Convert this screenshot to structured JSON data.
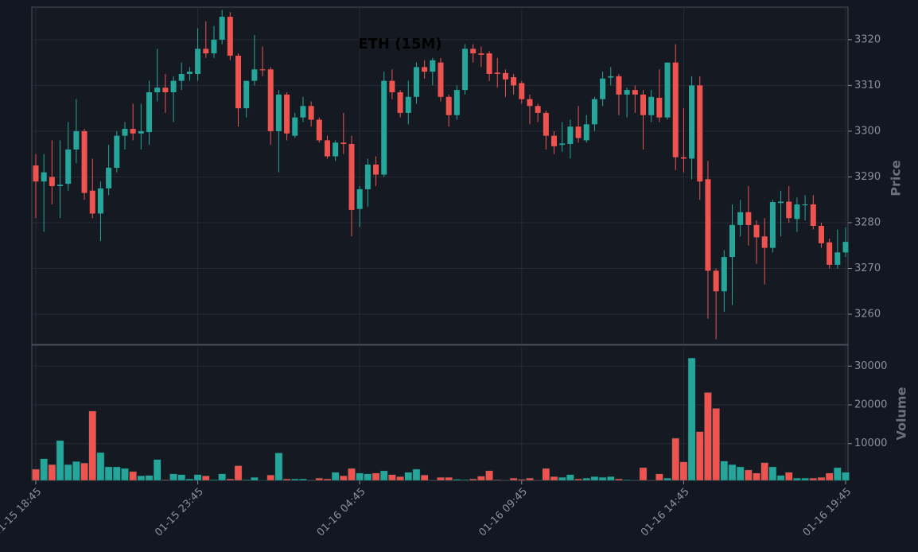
{
  "chart_data": {
    "type": "candlestick",
    "title": "ETH (15M)",
    "ylabel": "Price",
    "up_color": "#26a69a",
    "down_color": "#ef5350",
    "grid": true,
    "categories": [
      "01-15 18:45",
      null,
      null,
      null,
      null,
      null,
      null,
      null,
      null,
      null,
      null,
      null,
      null,
      null,
      null,
      null,
      null,
      null,
      null,
      null,
      "01-15 23:45",
      null,
      null,
      null,
      null,
      null,
      null,
      null,
      null,
      null,
      null,
      null,
      null,
      null,
      null,
      null,
      null,
      null,
      null,
      null,
      "01-16 04:45",
      null,
      null,
      null,
      null,
      null,
      null,
      null,
      null,
      null,
      null,
      null,
      null,
      null,
      null,
      null,
      null,
      null,
      null,
      null,
      "01-16 09:45",
      null,
      null,
      null,
      null,
      null,
      null,
      null,
      null,
      null,
      null,
      null,
      null,
      null,
      null,
      null,
      null,
      null,
      null,
      null,
      "01-16 14:45",
      null,
      null,
      null,
      null,
      null,
      null,
      null,
      null,
      null,
      null,
      null,
      null,
      null,
      null,
      null,
      null,
      null,
      null,
      null,
      "01-16 19:45"
    ],
    "open": [
      3292.5,
      3289,
      3290,
      3288,
      3288.5,
      3296,
      3300,
      3287,
      3282,
      3287.5,
      3292,
      3299,
      3300.5,
      3299.5,
      3299.8,
      3308.5,
      3309.5,
      3308.5,
      3311,
      3312.5,
      3312.5,
      3318,
      3317,
      3320,
      3325,
      3316.5,
      3305,
      3311,
      3313.5,
      3313.5,
      3300,
      3308,
      3299,
      3303,
      3305.5,
      3302.5,
      3298,
      3294.5,
      3297.5,
      3297.2,
      3283,
      3287.3,
      3292.7,
      3290.5,
      3311,
      3308.5,
      3304,
      3307.5,
      3314,
      3313,
      3315,
      3307.5,
      3303.5,
      3309,
      3318,
      3317,
      3317,
      3312.8,
      3312.7,
      3311.8,
      3310.5,
      3307,
      3305.5,
      3304,
      3299,
      3297,
      3297.2,
      3301,
      3298,
      3301.5,
      3307,
      3311.7,
      3312,
      3308,
      3309,
      3308,
      3303.5,
      3307.3,
      3303,
      3315,
      3294.3,
      3294,
      3310,
      3289.5,
      3269.5,
      3265,
      3272.5,
      3279.5,
      3282.3,
      3279.5,
      3277,
      3274.5,
      3284.3,
      3284.6,
      3280.8,
      3283.8,
      3284,
      3279.3,
      3275.7,
      3270.8,
      3273.5
    ],
    "high": [
      3295,
      3295,
      3298,
      3298,
      3302,
      3307,
      3300.5,
      3294,
      3289,
      3297,
      3300,
      3302,
      3306,
      3306,
      3311,
      3318,
      3312.5,
      3312,
      3315,
      3314,
      3322.5,
      3324,
      3323,
      3326.5,
      3326,
      3317,
      3311,
      3321,
      3318.5,
      3314,
      3309,
      3308.5,
      3304,
      3307.5,
      3306.5,
      3303,
      3299,
      3298,
      3304,
      3299,
      3288,
      3294,
      3294.5,
      3313,
      3313.5,
      3309,
      3311,
      3315,
      3315.5,
      3316,
      3316,
      3308,
      3310,
      3319,
      3319,
      3318.5,
      3317.5,
      3316,
      3313.5,
      3312.5,
      3311,
      3308,
      3306,
      3304.5,
      3300,
      3302,
      3302.5,
      3305.5,
      3303.5,
      3307.5,
      3313,
      3314,
      3312.5,
      3309.5,
      3310,
      3309,
      3309,
      3313.5,
      3315,
      3319,
      3305,
      3312,
      3312,
      3293.5,
      3270,
      3274,
      3284,
      3285,
      3288,
      3280.5,
      3281,
      3285,
      3287,
      3288,
      3285.5,
      3286,
      3286,
      3280,
      3276.5,
      3278.5,
      3279
    ],
    "low": [
      3281,
      3278,
      3284,
      3281,
      3287,
      3293,
      3285,
      3281,
      3276,
      3286,
      3291,
      3296,
      3298,
      3296,
      3297,
      3306.5,
      3304,
      3302,
      3309,
      3311,
      3311,
      3316,
      3316,
      3319,
      3315.5,
      3301,
      3303,
      3310,
      3312,
      3297,
      3291,
      3298,
      3298.5,
      3302,
      3301,
      3297.5,
      3294,
      3293.5,
      3295,
      3277,
      3279,
      3283.5,
      3288,
      3290,
      3307,
      3303,
      3301.5,
      3306,
      3311.5,
      3310,
      3306.5,
      3301,
      3302.5,
      3308,
      3315,
      3314,
      3311,
      3309.5,
      3307.5,
      3308,
      3306,
      3301.5,
      3302,
      3296,
      3295,
      3295.5,
      3294,
      3297.5,
      3297.5,
      3300,
      3305.5,
      3310,
      3303.5,
      3303,
      3304,
      3296,
      3302,
      3302,
      3302.5,
      3291.5,
      3291,
      3289.5,
      3285,
      3259,
      3254.5,
      3260.5,
      3262,
      3277,
      3275,
      3271,
      3266.5,
      3273.5,
      3277,
      3280,
      3278,
      3280.5,
      3278.5,
      3274.5,
      3270,
      3270,
      3272.5
    ],
    "close": [
      3289,
      3291,
      3288,
      3288.3,
      3296,
      3300,
      3286.5,
      3282,
      3287.5,
      3292,
      3299,
      3300.5,
      3299.5,
      3300,
      3308.5,
      3309.5,
      3308.5,
      3311,
      3312.5,
      3313,
      3318,
      3317,
      3320,
      3325,
      3316.5,
      3305,
      3311,
      3313.5,
      3313.3,
      3300,
      3308,
      3299.5,
      3303,
      3305.5,
      3302.5,
      3298,
      3294.5,
      3297.5,
      3297.2,
      3282.8,
      3287.3,
      3292.7,
      3290.5,
      3311,
      3308.5,
      3304,
      3307.5,
      3314,
      3313,
      3315.5,
      3307.5,
      3303.5,
      3309,
      3318,
      3317,
      3316.7,
      3312.5,
      3312.5,
      3311.3,
      3310,
      3307,
      3305.5,
      3304,
      3299,
      3296.7,
      3297.3,
      3301,
      3298.5,
      3301.5,
      3307,
      3311.5,
      3312,
      3308,
      3309,
      3308,
      3303.5,
      3307.5,
      3303,
      3315,
      3294.3,
      3294,
      3310,
      3289,
      3269.5,
      3265,
      3272.5,
      3279.5,
      3282.3,
      3279.5,
      3276.8,
      3274.5,
      3284.5,
      3284.6,
      3281,
      3284,
      3284,
      3279.3,
      3275.5,
      3270.8,
      3273.5,
      3275.8
    ],
    "ylim": [
      3253.4,
      3327.1
    ],
    "yticks": [
      3260,
      3270,
      3280,
      3290,
      3300,
      3310,
      3320
    ],
    "volume": {
      "ylabel": "Volume",
      "values": [
        3400,
        6100,
        4600,
        10800,
        4600,
        5400,
        5000,
        18400,
        7700,
        4000,
        4000,
        3600,
        2800,
        1700,
        1800,
        5900,
        700,
        2200,
        2000,
        900,
        2000,
        1700,
        700,
        2200,
        900,
        4300,
        700,
        1300,
        600,
        1900,
        7600,
        900,
        900,
        900,
        500,
        1100,
        900,
        2600,
        1700,
        3600,
        2400,
        2200,
        2400,
        3000,
        2000,
        1500,
        2600,
        3400,
        1900,
        500,
        1300,
        1300,
        800,
        700,
        900,
        1600,
        3000,
        700,
        500,
        1100,
        800,
        1100,
        500,
        3600,
        1500,
        1300,
        2000,
        900,
        1100,
        1500,
        1300,
        1500,
        900,
        700,
        500,
        3800,
        500,
        2200,
        1100,
        11400,
        5300,
        32100,
        13100,
        23200,
        19100,
        5500,
        4600,
        4000,
        3200,
        2400,
        5100,
        4000,
        1800,
        2600,
        1100,
        1100,
        1100,
        1300,
        2400,
        3800,
        2600
      ],
      "ylim": [
        500,
        35400
      ],
      "yticks": [
        10000,
        20000,
        30000
      ]
    }
  }
}
